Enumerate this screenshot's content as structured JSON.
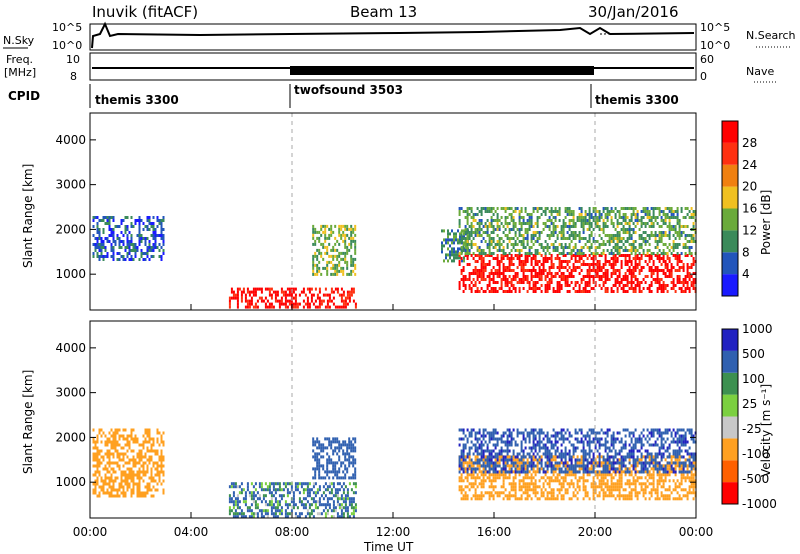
{
  "header": {
    "station": "Inuvik (fitACF)",
    "beam": "Beam 13",
    "date": "30/Jan/2016"
  },
  "top_panels": {
    "nsky_label": "N.Sky",
    "nsky_ticks": [
      "10^5",
      "10^0"
    ],
    "nsearch_label": "N.Search",
    "nsearch_ticks": [
      "10^5",
      "10^0"
    ],
    "freq_label_1": "Freq.",
    "freq_label_2": "[MHz]",
    "freq_ticks": [
      "10",
      "8"
    ],
    "nave_label": "Nave",
    "nave_ticks": [
      "60",
      "0"
    ],
    "cpid_label": "CPID",
    "cpid_segments": [
      {
        "name": "themis 3300",
        "start_h": 0,
        "end_h": 8
      },
      {
        "name": "twofsound 3503",
        "start_h": 8,
        "end_h": 20
      },
      {
        "name": "themis 3300",
        "start_h": 20,
        "end_h": 24
      }
    ]
  },
  "x_axis": {
    "label": "Time UT",
    "ticks": [
      "00:00",
      "04:00",
      "08:00",
      "12:00",
      "16:00",
      "20:00",
      "00:00"
    ]
  },
  "colors": {
    "power_scale": [
      "#1a1aff",
      "#2255bb",
      "#3a8a5a",
      "#6aaa3a",
      "#f0c020",
      "#f08010",
      "#ff3010",
      "#ff0000"
    ],
    "velocity_scale": [
      "#ff0000",
      "#ff6000",
      "#ffa020",
      "#c8c8c8",
      "#7bd040",
      "#3c9050",
      "#3060b0",
      "#2020c0"
    ]
  },
  "chart_data": [
    {
      "type": "heatmap",
      "title": "",
      "xlabel": "",
      "ylabel": "Slant Range [km]",
      "xlim": [
        0,
        24
      ],
      "ylim": [
        200,
        4600
      ],
      "yticks": [
        "1000",
        "2000",
        "3000",
        "4000"
      ],
      "colorbar_label": "Power [dB]",
      "colorbar_ticks": [
        "4",
        "8",
        "12",
        "16",
        "20",
        "24",
        "28"
      ],
      "regions": [
        {
          "x0": 0.1,
          "x1": 2.9,
          "y0": 1300,
          "y1": 2300,
          "value": 6
        },
        {
          "x0": 5.5,
          "x1": 10.5,
          "y0": 250,
          "y1": 700,
          "value": 30
        },
        {
          "x0": 8.8,
          "x1": 10.5,
          "y0": 1000,
          "y1": 2100,
          "value": 14
        },
        {
          "x0": 13.9,
          "x1": 15.0,
          "y0": 1300,
          "y1": 2000,
          "value": 10
        },
        {
          "x0": 14.6,
          "x1": 24.0,
          "y0": 600,
          "y1": 1450,
          "value": 30
        },
        {
          "x0": 14.6,
          "x1": 24.0,
          "y0": 1450,
          "y1": 2500,
          "value": 12
        }
      ]
    },
    {
      "type": "heatmap",
      "title": "",
      "xlabel": "Time UT",
      "ylabel": "Slant Range [km]",
      "xlim": [
        0,
        24
      ],
      "ylim": [
        200,
        4600
      ],
      "yticks": [
        "1000",
        "2000",
        "3000",
        "4000"
      ],
      "colorbar_label": "Velocity [m s⁻¹]",
      "colorbar_ticks": [
        "1000",
        "500",
        "100",
        "25",
        "-25",
        "-100",
        "-500",
        "-1000"
      ],
      "regions": [
        {
          "x0": 0.1,
          "x1": 2.9,
          "y0": 700,
          "y1": 2200,
          "value": -300
        },
        {
          "x0": 5.5,
          "x1": 10.5,
          "y0": 250,
          "y1": 1000,
          "value": 150
        },
        {
          "x0": 8.8,
          "x1": 10.5,
          "y0": 1100,
          "y1": 2000,
          "value": 300
        },
        {
          "x0": 14.6,
          "x1": 24.0,
          "y0": 600,
          "y1": 1600,
          "value": -300
        },
        {
          "x0": 14.6,
          "x1": 24.0,
          "y0": 1200,
          "y1": 2200,
          "value": 400
        }
      ]
    }
  ]
}
